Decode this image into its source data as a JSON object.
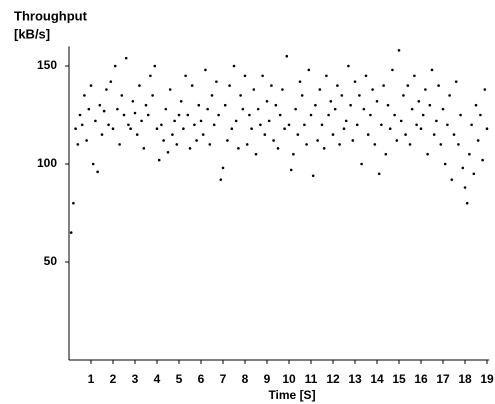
{
  "chart_data": {
    "type": "scatter",
    "title": "Throughput",
    "y_axis_label": "[kB/s]",
    "x_axis_label": "Time [S]",
    "color": "#000000",
    "xlim": [
      0,
      19.1
    ],
    "ylim": [
      0,
      160
    ],
    "xticks": [
      1,
      2,
      3,
      4,
      5,
      6,
      7,
      8,
      9,
      10,
      11,
      12,
      13,
      14,
      15,
      16,
      17,
      18,
      19
    ],
    "yticks": [
      50,
      100,
      150
    ],
    "x": [
      0.1,
      0.2,
      0.3,
      0.4,
      0.5,
      0.6,
      0.7,
      0.8,
      0.9,
      1.0,
      1.1,
      1.2,
      1.3,
      1.4,
      1.5,
      1.6,
      1.7,
      1.8,
      1.9,
      2.0,
      2.1,
      2.2,
      2.3,
      2.4,
      2.5,
      2.6,
      2.7,
      2.8,
      2.9,
      3.0,
      3.1,
      3.2,
      3.3,
      3.4,
      3.5,
      3.6,
      3.7,
      3.8,
      3.9,
      4.0,
      4.1,
      4.2,
      4.3,
      4.4,
      4.5,
      4.6,
      4.7,
      4.8,
      4.9,
      5.0,
      5.1,
      5.2,
      5.3,
      5.4,
      5.5,
      5.6,
      5.7,
      5.8,
      5.9,
      6.0,
      6.1,
      6.2,
      6.3,
      6.4,
      6.5,
      6.6,
      6.7,
      6.8,
      6.9,
      7.0,
      7.1,
      7.2,
      7.3,
      7.4,
      7.5,
      7.6,
      7.7,
      7.8,
      7.9,
      8.0,
      8.1,
      8.2,
      8.3,
      8.4,
      8.5,
      8.6,
      8.7,
      8.8,
      8.9,
      9.0,
      9.1,
      9.2,
      9.3,
      9.4,
      9.5,
      9.6,
      9.7,
      9.8,
      9.9,
      10.0,
      10.1,
      10.2,
      10.3,
      10.4,
      10.5,
      10.6,
      10.7,
      10.8,
      10.9,
      11.0,
      11.1,
      11.2,
      11.3,
      11.4,
      11.5,
      11.6,
      11.7,
      11.8,
      11.9,
      12.0,
      12.1,
      12.2,
      12.3,
      12.4,
      12.5,
      12.6,
      12.7,
      12.8,
      12.9,
      13.0,
      13.1,
      13.2,
      13.3,
      13.4,
      13.5,
      13.6,
      13.7,
      13.8,
      13.9,
      14.0,
      14.1,
      14.2,
      14.3,
      14.4,
      14.5,
      14.6,
      14.7,
      14.8,
      14.9,
      15.0,
      15.1,
      15.2,
      15.3,
      15.4,
      15.5,
      15.6,
      15.7,
      15.8,
      15.9,
      16.0,
      16.1,
      16.2,
      16.3,
      16.4,
      16.5,
      16.6,
      16.7,
      16.8,
      16.9,
      17.0,
      17.1,
      17.2,
      17.3,
      17.4,
      17.5,
      17.6,
      17.7,
      17.8,
      17.9,
      18.0,
      18.1,
      18.2,
      18.3,
      18.4,
      18.5,
      18.6,
      18.7,
      18.8,
      18.9,
      19.0
    ],
    "values": [
      65,
      80,
      118,
      110,
      125,
      120,
      135,
      112,
      128,
      140,
      100,
      122,
      96,
      130,
      115,
      127,
      138,
      120,
      142,
      118,
      150,
      128,
      110,
      135,
      125,
      154,
      120,
      118,
      132,
      126,
      115,
      140,
      122,
      108,
      130,
      125,
      145,
      135,
      150,
      118,
      102,
      120,
      112,
      128,
      106,
      138,
      115,
      122,
      110,
      125,
      132,
      118,
      145,
      125,
      108,
      140,
      120,
      112,
      130,
      122,
      115,
      148,
      128,
      110,
      135,
      120,
      142,
      125,
      92,
      98,
      130,
      112,
      140,
      118,
      150,
      122,
      108,
      135,
      128,
      145,
      110,
      125,
      118,
      138,
      105,
      128,
      120,
      145,
      115,
      132,
      122,
      140,
      112,
      130,
      108,
      125,
      138,
      118,
      155,
      120,
      97,
      105,
      128,
      115,
      142,
      135,
      120,
      110,
      148,
      125,
      94,
      130,
      112,
      138,
      120,
      108,
      145,
      125,
      132,
      115,
      128,
      140,
      110,
      135,
      118,
      122,
      150,
      130,
      112,
      142,
      120,
      135,
      100,
      128,
      145,
      115,
      125,
      138,
      110,
      132,
      95,
      120,
      140,
      105,
      130,
      118,
      148,
      125,
      112,
      158,
      122,
      135,
      115,
      140,
      110,
      128,
      145,
      120,
      132,
      118,
      125,
      138,
      105,
      130,
      148,
      115,
      122,
      140,
      110,
      128,
      100,
      120,
      135,
      92,
      115,
      142,
      110,
      125,
      98,
      88,
      80,
      105,
      120,
      95,
      130,
      112,
      125,
      102,
      138,
      118
    ]
  }
}
